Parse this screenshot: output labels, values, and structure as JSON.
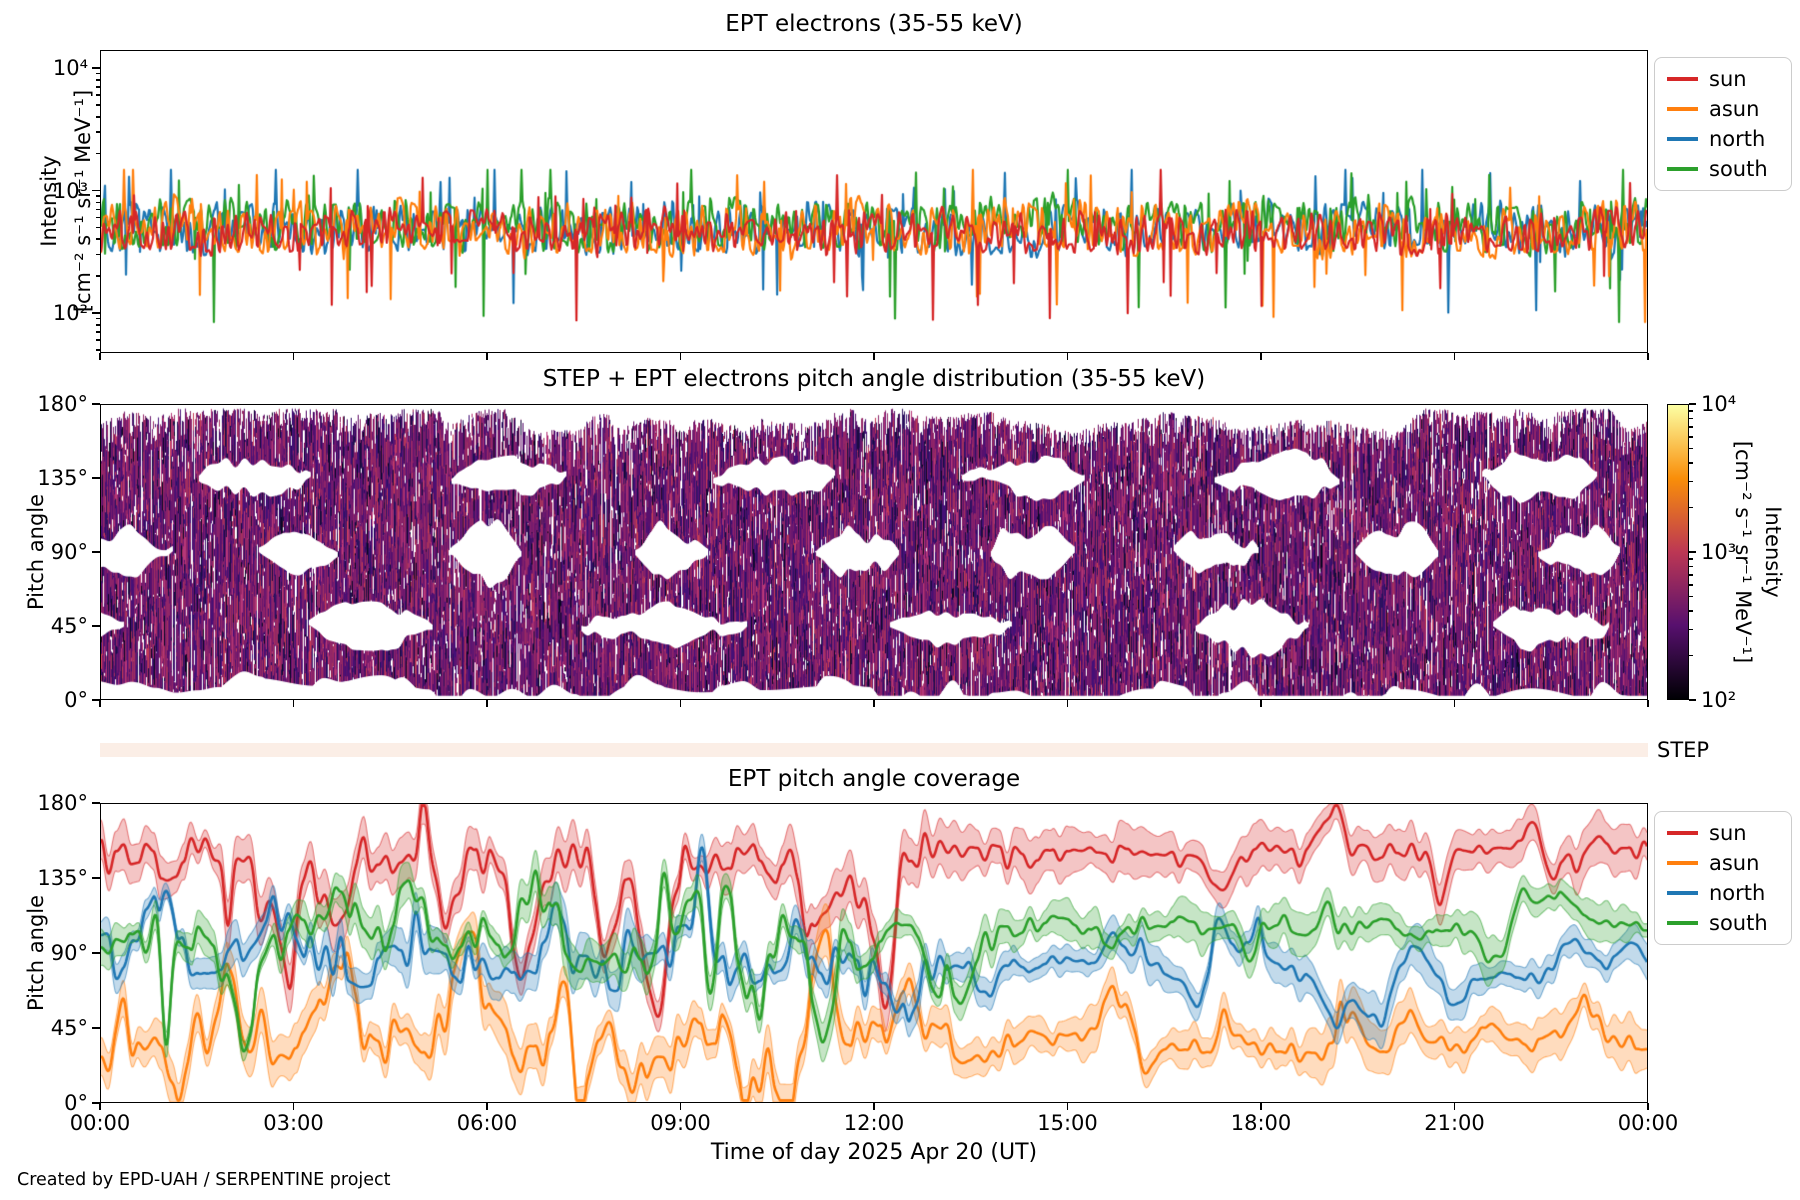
{
  "window": {
    "background": "#ffffff",
    "footer": "Created by EPD-UAH / SERPENTINE project"
  },
  "x_axis": {
    "label": "Time of day 2025 Apr 20 (UT)",
    "tick_labels": [
      "00:00",
      "03:00",
      "06:00",
      "09:00",
      "12:00",
      "15:00",
      "18:00",
      "21:00",
      "00:00"
    ],
    "range_hours": [
      0,
      24
    ]
  },
  "legend": {
    "position": "outside-right",
    "entries": [
      {
        "label": "sun",
        "color": "#d62728"
      },
      {
        "label": "asun",
        "color": "#ff7f0e"
      },
      {
        "label": "north",
        "color": "#1f77b4"
      },
      {
        "label": "south",
        "color": "#2ca02c"
      }
    ]
  },
  "chart_data": [
    {
      "id": "ept_electrons",
      "type": "line",
      "title": "EPT electrons (35-55 keV)",
      "ylabel_lines": [
        "Intensity",
        "[cm⁻² s⁻¹ sr⁻¹ MeV⁻¹]"
      ],
      "y_scale": "log",
      "y_ticks": [
        {
          "label": "10⁴",
          "log10": 4
        },
        {
          "label": "10³",
          "log10": 3
        },
        {
          "label": "10²",
          "log10": 2
        }
      ],
      "y_range_log10": [
        1.67,
        4.15
      ],
      "grid": false,
      "series": [
        {
          "name": "sun",
          "color": "#d62728",
          "baseline_log10": 2.67,
          "noise_amp_log10": 0.135,
          "approx_median": 470,
          "approx_range": [
            90,
            1150
          ]
        },
        {
          "name": "asun",
          "color": "#ff7f0e",
          "baseline_log10": 2.7,
          "noise_amp_log10": 0.165,
          "approx_median": 500,
          "approx_range": [
            80,
            1250
          ]
        },
        {
          "name": "north",
          "color": "#1f77b4",
          "baseline_log10": 2.7,
          "noise_amp_log10": 0.165,
          "approx_median": 500,
          "approx_range": [
            70,
            1250
          ]
        },
        {
          "name": "south",
          "color": "#2ca02c",
          "baseline_log10": 2.72,
          "noise_amp_log10": 0.165,
          "approx_median": 520,
          "approx_range": [
            80,
            1350
          ]
        }
      ],
      "description": "Four heavily-overlapping noisy time series fluctuating around ~5x10^2 all day; no solar-event enhancement visible."
    },
    {
      "id": "pad_spectrogram",
      "type": "heatmap",
      "title": "STEP + EPT electrons pitch angle distribution (35-55 keV)",
      "ylabel": "Pitch angle",
      "y_ticks": [
        {
          "label": "0°",
          "deg": 0
        },
        {
          "label": "45°",
          "deg": 45
        },
        {
          "label": "90°",
          "deg": 90
        },
        {
          "label": "135°",
          "deg": 135
        },
        {
          "label": "180°",
          "deg": 180
        }
      ],
      "y_range_deg": [
        0,
        180
      ],
      "value_range": [
        100,
        10000
      ],
      "colorbar": {
        "scale": "log",
        "colormap": "inferno",
        "gradient": [
          "#000004",
          "#57106e",
          "#bc3754",
          "#f98e09",
          "#fcffa4"
        ],
        "ticks": [
          {
            "label": "10⁴",
            "log10": 4
          },
          {
            "label": "10³",
            "log10": 3
          },
          {
            "label": "10²",
            "log10": 2
          }
        ],
        "label_lines": [
          "Intensity",
          "[cm⁻² s⁻¹ sr⁻¹ MeV⁻¹]"
        ]
      },
      "palette": [
        [
          "#0b0724",
          1
        ],
        [
          "#1b0c41",
          2
        ],
        [
          "#2d1160",
          3
        ],
        [
          "#451077",
          4
        ],
        [
          "#57106e",
          5
        ],
        [
          "#6a176e",
          5
        ],
        [
          "#781c6d",
          5
        ],
        [
          "#8a226a",
          4
        ],
        [
          "#932667",
          4
        ],
        [
          "#a3305e",
          3
        ],
        [
          "#b73779",
          2
        ],
        [
          "#c43c54",
          1
        ]
      ],
      "annotation": {
        "label": "STEP",
        "strip_color": "#fbeee6"
      },
      "description": "Dense purple vertical striping (intensities mostly 2-8x10^2) covering 0-180°, with rhythmic white lens-shaped coverage gaps opening around 90° and near 45°/135°."
    },
    {
      "id": "ept_coverage",
      "type": "line-band",
      "title": "EPT pitch angle coverage",
      "ylabel": "Pitch angle",
      "y_ticks": [
        {
          "label": "0°",
          "deg": 0
        },
        {
          "label": "45°",
          "deg": 45
        },
        {
          "label": "90°",
          "deg": 90
        },
        {
          "label": "135°",
          "deg": 135
        },
        {
          "label": "180°",
          "deg": 180
        }
      ],
      "y_range_deg": [
        0,
        180
      ],
      "series": [
        {
          "name": "sun",
          "color": "#d62728",
          "mean_deg": [
            146,
            150
          ],
          "wiggle_amp_deg": [
            25,
            11
          ],
          "band_halfwidth_deg": 11,
          "dip_up_fraction": 0.12
        },
        {
          "name": "asun",
          "color": "#ff7f0e",
          "mean_deg": [
            34,
            33
          ],
          "wiggle_amp_deg": [
            23,
            10
          ],
          "band_halfwidth_deg": 11,
          "dip_up_fraction": 0.55
        },
        {
          "name": "north",
          "color": "#1f77b4",
          "mean_deg": [
            88,
            79
          ],
          "wiggle_amp_deg": [
            24,
            9
          ],
          "band_halfwidth_deg": 9,
          "dip_up_fraction": 0.5
        },
        {
          "name": "south",
          "color": "#2ca02c",
          "mean_deg": [
            95,
            106
          ],
          "wiggle_amp_deg": [
            24,
            9
          ],
          "band_halfwidth_deg": 9,
          "dip_up_fraction": 0.5
        }
      ],
      "description": "Central pitch angle of each EPT telescope with shaded aperture band (~±10°); sun ~145-155°, asun ~30-40°, north/south criss-crossing around 90°, settling after ~14:00 with south above north."
    }
  ]
}
